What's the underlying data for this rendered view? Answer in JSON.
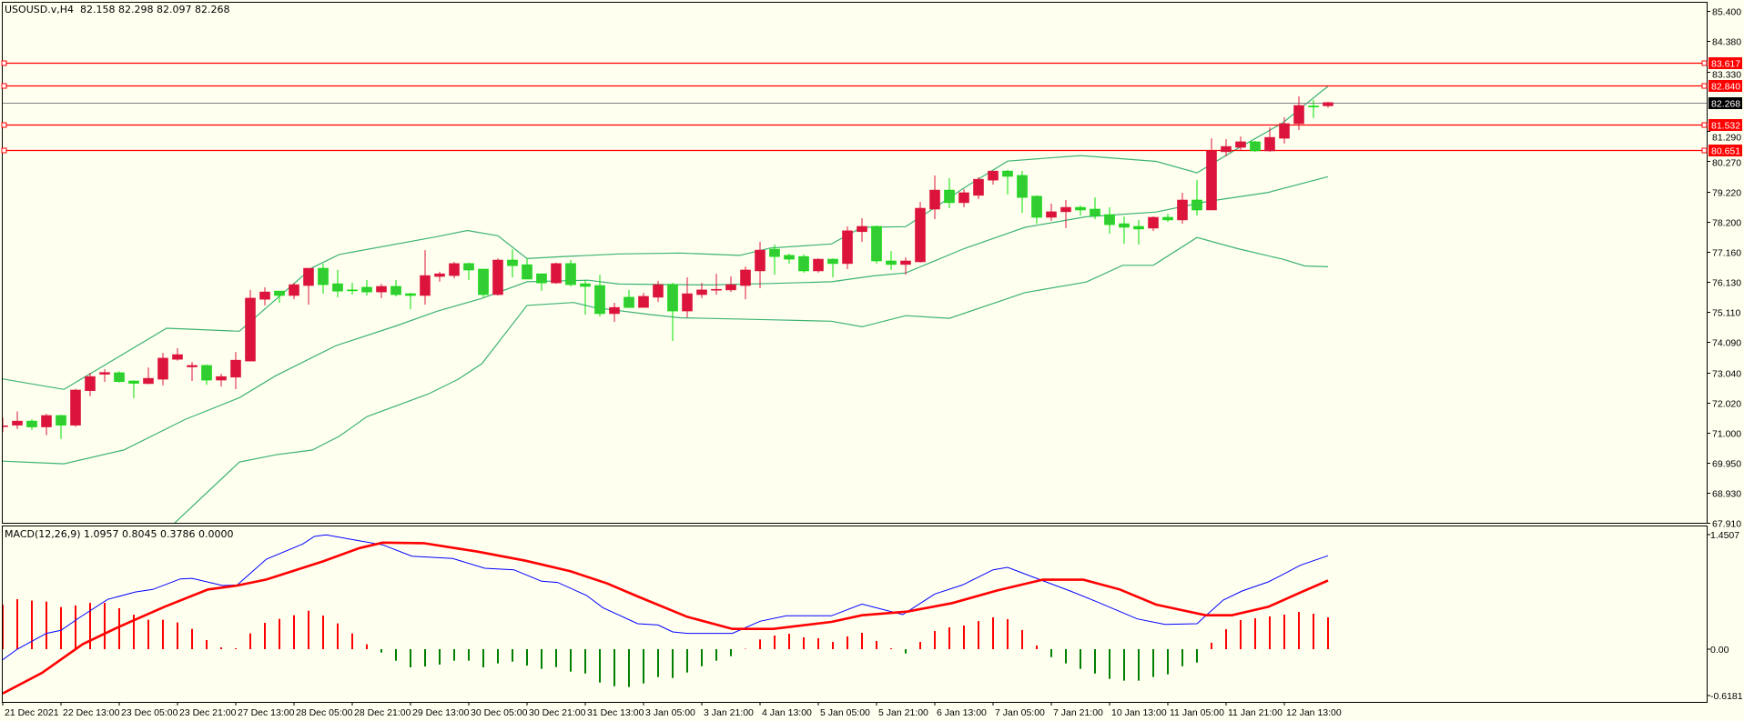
{
  "header": {
    "symbol": "USOUSD.v,H4",
    "open": "82.158",
    "high": "82.298",
    "low": "82.097",
    "close": "82.268"
  },
  "macd_header": {
    "label": "MACD(12,26,9)",
    "v1": "1.0957",
    "v2": "0.8045",
    "v3": "0.3786",
    "v4": "0.0000"
  },
  "colors": {
    "background": "#FFFFF0",
    "bull": "#DC143C",
    "bear": "#32CD32",
    "bear_wick": "#00E000",
    "bands": "#3CB371",
    "levels": "#FF0000",
    "current": "#808080",
    "macd_main": "#0000FF",
    "macd_signal": "#FF0000",
    "hist_pos": "#FF0000",
    "hist_neg": "#008000"
  },
  "chart_data": {
    "type": "candlestick",
    "price_range": [
      67.91,
      85.4
    ],
    "price_ticks": [
      "85.400",
      "84.380",
      "83.330",
      "81.290",
      "80.270",
      "79.220",
      "78.200",
      "77.160",
      "76.130",
      "75.110",
      "74.090",
      "73.040",
      "72.020",
      "71.000",
      "69.950",
      "68.930",
      "67.910"
    ],
    "current_price": "82.268",
    "levels": [
      "83.617",
      "82.840",
      "81.532",
      "80.651"
    ],
    "time_labels": [
      "21 Dec 2021",
      "22 Dec 13:00",
      "23 Dec 05:00",
      "23 Dec 21:00",
      "27 Dec 13:00",
      "28 Dec 05:00",
      "28 Dec 21:00",
      "29 Dec 13:00",
      "30 Dec 05:00",
      "30 Dec 21:00",
      "31 Dec 13:00",
      "3 Jan 05:00",
      "3 Jan 21:00",
      "4 Jan 13:00",
      "5 Jan 05:00",
      "5 Jan 21:00",
      "6 Jan 13:00",
      "7 Jan 05:00",
      "7 Jan 21:00",
      "10 Jan 13:00",
      "11 Jan 05:00",
      "11 Jan 21:00",
      "12 Jan 13:00"
    ],
    "time_label_every_bars": 4,
    "ohlc": [
      [
        71.22,
        71.51,
        71.02,
        71.23
      ],
      [
        71.25,
        71.72,
        71.12,
        71.39
      ],
      [
        71.39,
        71.45,
        71.09,
        71.19
      ],
      [
        71.19,
        71.64,
        70.91,
        71.58
      ],
      [
        71.58,
        71.6,
        70.78,
        71.25
      ],
      [
        71.25,
        72.49,
        71.19,
        72.45
      ],
      [
        72.43,
        73.04,
        72.24,
        72.91
      ],
      [
        72.99,
        73.16,
        72.73,
        73.05
      ],
      [
        73.04,
        73.09,
        72.71,
        72.74
      ],
      [
        72.76,
        72.78,
        72.17,
        72.68
      ],
      [
        72.67,
        73.22,
        72.65,
        72.85
      ],
      [
        72.82,
        73.72,
        72.61,
        73.54
      ],
      [
        73.5,
        73.88,
        73.45,
        73.66
      ],
      [
        73.24,
        73.41,
        72.76,
        73.29
      ],
      [
        73.29,
        73.32,
        72.63,
        72.79
      ],
      [
        72.79,
        73.01,
        72.57,
        72.91
      ],
      [
        72.89,
        73.75,
        72.48,
        73.47
      ],
      [
        73.44,
        75.87,
        73.44,
        75.59
      ],
      [
        75.55,
        75.96,
        75.34,
        75.8
      ],
      [
        75.83,
        75.83,
        75.43,
        75.68
      ],
      [
        75.68,
        76.11,
        75.55,
        76.05
      ],
      [
        76.02,
        76.61,
        75.37,
        76.61
      ],
      [
        76.61,
        76.77,
        75.74,
        76.05
      ],
      [
        76.08,
        76.55,
        75.62,
        75.83
      ],
      [
        75.87,
        76.11,
        75.71,
        75.85
      ],
      [
        75.96,
        76.21,
        75.68,
        75.8
      ],
      [
        75.8,
        76.08,
        75.59,
        75.99
      ],
      [
        75.99,
        76.21,
        75.65,
        75.71
      ],
      [
        75.74,
        75.77,
        75.21,
        75.68
      ],
      [
        75.68,
        77.23,
        75.37,
        76.36
      ],
      [
        76.33,
        76.49,
        76.15,
        76.42
      ],
      [
        76.36,
        76.83,
        76.27,
        76.77
      ],
      [
        76.77,
        76.8,
        76.21,
        76.55
      ],
      [
        76.58,
        76.58,
        75.62,
        75.71
      ],
      [
        75.71,
        76.95,
        75.68,
        76.89
      ],
      [
        76.89,
        77.26,
        76.3,
        76.7
      ],
      [
        76.73,
        76.95,
        76.24,
        76.24
      ],
      [
        76.42,
        76.42,
        75.84,
        76.11
      ],
      [
        76.11,
        76.8,
        76.08,
        76.77
      ],
      [
        76.77,
        76.89,
        75.99,
        76.05
      ],
      [
        76.08,
        76.21,
        75.03,
        75.99
      ],
      [
        76.02,
        76.39,
        74.96,
        75.06
      ],
      [
        75.06,
        75.43,
        74.78,
        75.27
      ],
      [
        75.62,
        75.87,
        75.27,
        75.27
      ],
      [
        75.27,
        75.77,
        75.27,
        75.65
      ],
      [
        75.62,
        76.18,
        75.46,
        76.05
      ],
      [
        76.05,
        76.11,
        74.13,
        75.15
      ],
      [
        75.15,
        76.3,
        74.93,
        75.74
      ],
      [
        75.71,
        76.11,
        75.59,
        75.87
      ],
      [
        75.87,
        76.42,
        75.71,
        75.89
      ],
      [
        75.87,
        76.33,
        75.8,
        76.05
      ],
      [
        76.02,
        76.67,
        75.55,
        76.55
      ],
      [
        76.52,
        77.51,
        75.93,
        77.23
      ],
      [
        77.26,
        77.42,
        76.39,
        77.01
      ],
      [
        77.05,
        77.11,
        76.77,
        76.92
      ],
      [
        77.01,
        77.08,
        76.46,
        76.52
      ],
      [
        76.52,
        76.95,
        76.46,
        76.92
      ],
      [
        76.92,
        76.95,
        76.3,
        76.77
      ],
      [
        76.77,
        78.04,
        76.58,
        77.89
      ],
      [
        77.86,
        78.32,
        77.51,
        78.04
      ],
      [
        78.04,
        78.07,
        76.77,
        76.86
      ],
      [
        76.86,
        77.2,
        76.55,
        76.74
      ],
      [
        76.74,
        76.98,
        76.39,
        76.86
      ],
      [
        76.83,
        78.88,
        76.8,
        78.66
      ],
      [
        78.63,
        79.78,
        78.29,
        79.28
      ],
      [
        79.28,
        79.69,
        78.66,
        78.85
      ],
      [
        78.85,
        79.31,
        78.69,
        79.19
      ],
      [
        79.1,
        79.72,
        78.97,
        79.65
      ],
      [
        79.62,
        79.93,
        79.47,
        79.93
      ],
      [
        79.93,
        79.97,
        79.13,
        79.75
      ],
      [
        79.78,
        79.93,
        78.5,
        79.03
      ],
      [
        79.07,
        79.1,
        78.13,
        78.35
      ],
      [
        78.35,
        78.82,
        78.23,
        78.54
      ],
      [
        78.54,
        78.94,
        77.98,
        78.69
      ],
      [
        78.69,
        78.75,
        78.41,
        78.6
      ],
      [
        78.63,
        79.03,
        78.29,
        78.41
      ],
      [
        78.44,
        78.69,
        77.79,
        78.1
      ],
      [
        78.13,
        78.38,
        77.45,
        78.01
      ],
      [
        78.04,
        78.26,
        77.42,
        77.95
      ],
      [
        77.98,
        78.38,
        77.88,
        78.35
      ],
      [
        78.35,
        78.47,
        78.2,
        78.26
      ],
      [
        78.26,
        79.19,
        78.13,
        78.94
      ],
      [
        78.94,
        79.62,
        78.41,
        78.6
      ],
      [
        78.6,
        81.05,
        78.6,
        80.62
      ],
      [
        80.59,
        81.02,
        80.43,
        80.77
      ],
      [
        80.74,
        81.11,
        80.62,
        80.93
      ],
      [
        80.93,
        80.96,
        80.59,
        80.62
      ],
      [
        80.62,
        81.42,
        80.59,
        81.08
      ],
      [
        81.05,
        81.77,
        80.87,
        81.55
      ],
      [
        81.55,
        82.48,
        81.33,
        82.17
      ],
      [
        82.15,
        82.36,
        81.74,
        82.13
      ],
      [
        82.158,
        82.298,
        82.097,
        82.268
      ]
    ],
    "bollinger": {
      "upper": [
        [
          0,
          72.83
        ],
        [
          4.2,
          72.47
        ],
        [
          11.25,
          74.56
        ],
        [
          16.25,
          74.46
        ],
        [
          21.25,
          76.63
        ],
        [
          23.1,
          77.08
        ],
        [
          29.8,
          77.69
        ],
        [
          31.9,
          77.9
        ],
        [
          34,
          77.72
        ],
        [
          36,
          76.94
        ],
        [
          38.1,
          77.0
        ],
        [
          42.3,
          77.1
        ],
        [
          46.5,
          77.13
        ],
        [
          50.6,
          77.05
        ],
        [
          52.7,
          77.3
        ],
        [
          56.9,
          77.44
        ],
        [
          59,
          78.01
        ],
        [
          62,
          78.03
        ],
        [
          64,
          78.68
        ],
        [
          66,
          79.35
        ],
        [
          69,
          80.27
        ],
        [
          74,
          80.46
        ],
        [
          79.2,
          80.26
        ],
        [
          82,
          79.87
        ],
        [
          84.8,
          80.7
        ],
        [
          87.9,
          81.58
        ],
        [
          90.6,
          82.67
        ],
        [
          91,
          82.82
        ]
      ],
      "middle": [
        [
          0,
          70.02
        ],
        [
          4.2,
          69.93
        ],
        [
          8.3,
          70.4
        ],
        [
          12.5,
          71.44
        ],
        [
          16.25,
          72.19
        ],
        [
          18.75,
          72.94
        ],
        [
          22.9,
          73.97
        ],
        [
          27,
          74.64
        ],
        [
          29.8,
          75.14
        ],
        [
          32.9,
          75.58
        ],
        [
          36,
          76.15
        ],
        [
          40.2,
          76.2
        ],
        [
          42.3,
          76.07
        ],
        [
          48.6,
          76.04
        ],
        [
          52.7,
          76.09
        ],
        [
          56.9,
          76.15
        ],
        [
          59.8,
          76.35
        ],
        [
          62,
          76.45
        ],
        [
          66,
          77.28
        ],
        [
          70.2,
          78.01
        ],
        [
          74.4,
          78.37
        ],
        [
          79.2,
          78.53
        ],
        [
          82.7,
          78.89
        ],
        [
          86.9,
          79.2
        ],
        [
          91,
          79.74
        ]
      ],
      "lower": [
        [
          0,
          65.0
        ],
        [
          11.7,
          67.86
        ],
        [
          16.25,
          69.99
        ],
        [
          18.75,
          70.24
        ],
        [
          21.25,
          70.4
        ],
        [
          23.1,
          70.87
        ],
        [
          25,
          71.54
        ],
        [
          29.2,
          72.31
        ],
        [
          31.25,
          72.81
        ],
        [
          32.9,
          73.35
        ],
        [
          36,
          75.34
        ],
        [
          39.2,
          75.44
        ],
        [
          40.6,
          75.27
        ],
        [
          44.4,
          75.03
        ],
        [
          46.5,
          74.92
        ],
        [
          52.7,
          74.85
        ],
        [
          56.9,
          74.8
        ],
        [
          59,
          74.61
        ],
        [
          62,
          74.99
        ],
        [
          65,
          74.9
        ],
        [
          70.2,
          75.78
        ],
        [
          74.4,
          76.14
        ],
        [
          76.9,
          76.71
        ],
        [
          79,
          76.71
        ],
        [
          82,
          77.66
        ],
        [
          84.8,
          77.28
        ],
        [
          87.9,
          76.92
        ],
        [
          89.4,
          76.69
        ],
        [
          91,
          76.66
        ]
      ]
    },
    "macd": {
      "range": [
        -0.6181,
        1.4507
      ],
      "ticks": [
        "1.4507",
        "0.00",
        "-0.6181"
      ],
      "histogram": [
        0.52,
        0.586,
        0.569,
        0.558,
        0.494,
        0.512,
        0.543,
        0.543,
        0.48,
        0.405,
        0.345,
        0.345,
        0.313,
        0.238,
        0.107,
        0.021,
        0.011,
        0.185,
        0.309,
        0.355,
        0.398,
        0.451,
        0.394,
        0.302,
        0.185,
        0.057,
        -0.039,
        -0.135,
        -0.213,
        -0.203,
        -0.181,
        -0.135,
        -0.135,
        -0.213,
        -0.167,
        -0.146,
        -0.192,
        -0.231,
        -0.21,
        -0.263,
        -0.285,
        -0.391,
        -0.434,
        -0.444,
        -0.402,
        -0.327,
        -0.338,
        -0.274,
        -0.2,
        -0.135,
        -0.082,
        0.005,
        0.114,
        0.16,
        0.181,
        0.139,
        0.128,
        0.085,
        0.149,
        0.192,
        0.096,
        0.011,
        -0.05,
        0.085,
        0.213,
        0.256,
        0.277,
        0.33,
        0.373,
        0.352,
        0.224,
        0.043,
        -0.093,
        -0.167,
        -0.231,
        -0.285,
        -0.348,
        -0.369,
        -0.369,
        -0.327,
        -0.295,
        -0.2,
        -0.157,
        0.075,
        0.234,
        0.341,
        0.362,
        0.384,
        0.405,
        0.437,
        0.416,
        0.373
      ],
      "main": [
        [
          0,
          -0.124
        ],
        [
          1,
          0.0
        ],
        [
          3,
          0.185
        ],
        [
          4,
          0.221
        ],
        [
          5.2,
          0.362
        ],
        [
          7.2,
          0.583
        ],
        [
          9.1,
          0.671
        ],
        [
          10.3,
          0.7
        ],
        [
          12.2,
          0.824
        ],
        [
          13,
          0.831
        ],
        [
          15.1,
          0.746
        ],
        [
          16.1,
          0.753
        ],
        [
          18.1,
          1.055
        ],
        [
          20.6,
          1.233
        ],
        [
          21.4,
          1.322
        ],
        [
          22.2,
          1.34
        ],
        [
          24.2,
          1.279
        ],
        [
          26.1,
          1.223
        ],
        [
          28.1,
          1.091
        ],
        [
          30.9,
          1.063
        ],
        [
          33.1,
          0.949
        ],
        [
          35.1,
          0.931
        ],
        [
          37,
          0.796
        ],
        [
          38.1,
          0.782
        ],
        [
          40.1,
          0.629
        ],
        [
          41.2,
          0.487
        ],
        [
          43.6,
          0.298
        ],
        [
          45,
          0.284
        ],
        [
          46,
          0.203
        ],
        [
          47,
          0.185
        ],
        [
          50.1,
          0.185
        ],
        [
          52,
          0.327
        ],
        [
          53.8,
          0.391
        ],
        [
          56.9,
          0.391
        ],
        [
          59,
          0.529
        ],
        [
          61.8,
          0.405
        ],
        [
          64,
          0.647
        ],
        [
          65.9,
          0.753
        ],
        [
          68,
          0.931
        ],
        [
          69,
          0.959
        ],
        [
          70.8,
          0.842
        ],
        [
          73.3,
          0.682
        ],
        [
          75.1,
          0.558
        ],
        [
          77.9,
          0.355
        ],
        [
          79.8,
          0.291
        ],
        [
          82,
          0.298
        ],
        [
          83.8,
          0.576
        ],
        [
          85.1,
          0.682
        ],
        [
          86.9,
          0.789
        ],
        [
          87.8,
          0.867
        ],
        [
          89.1,
          0.984
        ],
        [
          91,
          1.0957
        ]
      ],
      "signal": [
        [
          0,
          -0.519
        ],
        [
          2.7,
          -0.277
        ],
        [
          5.5,
          0.06
        ],
        [
          8,
          0.263
        ],
        [
          11.1,
          0.497
        ],
        [
          14.1,
          0.7
        ],
        [
          16.1,
          0.746
        ],
        [
          18.1,
          0.817
        ],
        [
          22,
          1.03
        ],
        [
          24.5,
          1.186
        ],
        [
          26.1,
          1.25
        ],
        [
          28.9,
          1.243
        ],
        [
          32.6,
          1.144
        ],
        [
          35.9,
          1.037
        ],
        [
          39,
          0.913
        ],
        [
          41.5,
          0.771
        ],
        [
          43.6,
          0.618
        ],
        [
          47,
          0.38
        ],
        [
          50.1,
          0.238
        ],
        [
          52.9,
          0.238
        ],
        [
          56.9,
          0.32
        ],
        [
          59,
          0.398
        ],
        [
          62.1,
          0.44
        ],
        [
          65.2,
          0.54
        ],
        [
          68.3,
          0.689
        ],
        [
          71.4,
          0.814
        ],
        [
          74.2,
          0.814
        ],
        [
          76.7,
          0.7
        ],
        [
          79.2,
          0.522
        ],
        [
          82.6,
          0.398
        ],
        [
          84.4,
          0.398
        ],
        [
          86.9,
          0.497
        ],
        [
          89.1,
          0.664
        ],
        [
          91,
          0.8045
        ]
      ]
    }
  }
}
